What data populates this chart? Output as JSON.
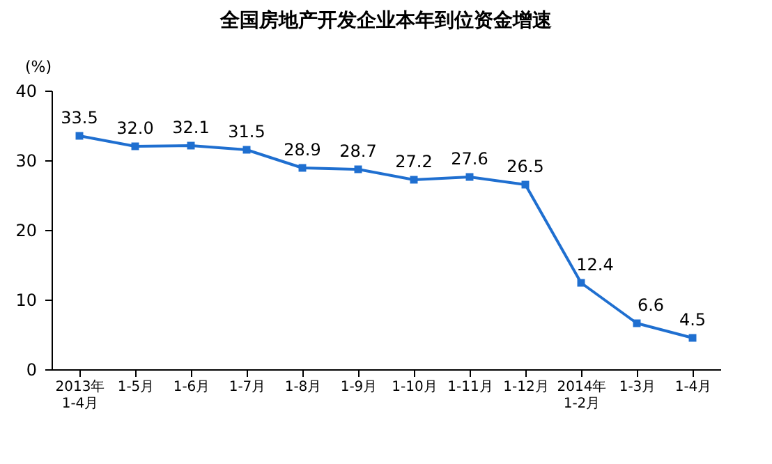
{
  "chart_data": {
    "type": "line",
    "title": "全国房地产开发企业本年到位资金增速",
    "ylabel": "(%)",
    "categories": [
      "2013年\n1-4月",
      "1-5月",
      "1-6月",
      "1-7月",
      "1-8月",
      "1-9月",
      "1-10月",
      "1-11月",
      "1-12月",
      "2014年\n1-2月",
      "1-3月",
      "1-4月"
    ],
    "series": [
      {
        "color": "#1f6fd0",
        "values": [
          33.5,
          32.0,
          32.1,
          31.5,
          28.9,
          28.7,
          27.2,
          27.6,
          26.5,
          12.4,
          6.6,
          4.5
        ],
        "value_labels": [
          "33.5",
          "32.0",
          "32.1",
          "31.5",
          "28.9",
          "28.7",
          "27.2",
          "27.6",
          "26.5",
          "12.4",
          "6.6",
          "4.5"
        ]
      }
    ],
    "ylim": [
      0,
      40
    ],
    "yticks": [
      0,
      10,
      20,
      30,
      40
    ],
    "grid": false,
    "marker": "square",
    "line_style": "solid"
  }
}
